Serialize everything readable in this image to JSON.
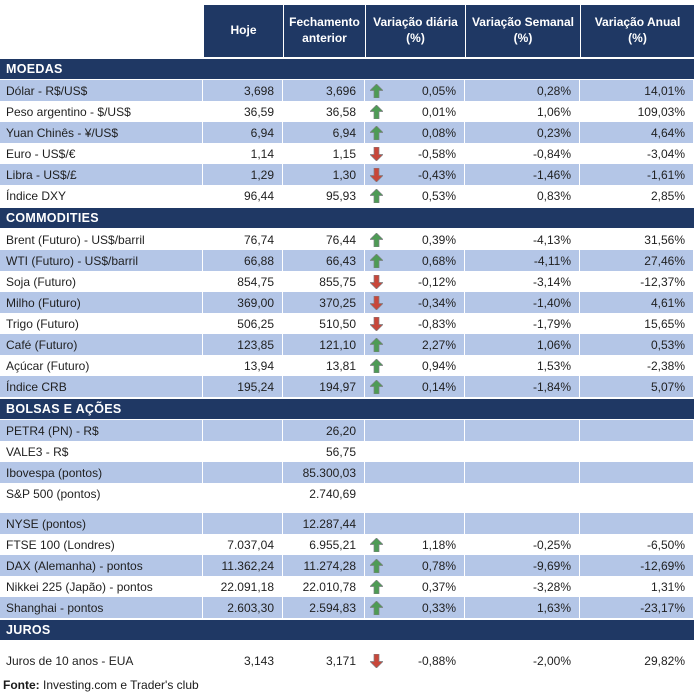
{
  "colors": {
    "header_bg": "#1F3864",
    "band_row": "#B4C6E7",
    "up_arrow": "#4E9B55",
    "down_arrow": "#C8473A"
  },
  "chart_data": {
    "type": "table",
    "columns": [
      "Hoje",
      "Fechamento anterior",
      "Variação diária (%)",
      "Variação Semanal (%)",
      "Variação Anual (%)"
    ],
    "sections": [
      {
        "title": "MOEDAS",
        "band_offset": 0,
        "rows": [
          {
            "label": "Dólar - R$/US$",
            "hoje": "3,698",
            "fechamento": "3,696",
            "arrow": "up",
            "diaria": "0,05%",
            "semanal": "0,28%",
            "anual": "14,01%"
          },
          {
            "label": "Peso argentino - $/US$",
            "hoje": "36,59",
            "fechamento": "36,58",
            "arrow": "up",
            "diaria": "0,01%",
            "semanal": "1,06%",
            "anual": "109,03%"
          },
          {
            "label": "Yuan Chinês - ¥/US$",
            "hoje": "6,94",
            "fechamento": "6,94",
            "arrow": "up",
            "diaria": "0,08%",
            "semanal": "0,23%",
            "anual": "4,64%"
          },
          {
            "label": "Euro - US$/€",
            "hoje": "1,14",
            "fechamento": "1,15",
            "arrow": "down",
            "diaria": "-0,58%",
            "semanal": "-0,84%",
            "anual": "-3,04%"
          },
          {
            "label": "Libra - US$/£",
            "hoje": "1,29",
            "fechamento": "1,30",
            "arrow": "down",
            "diaria": "-0,43%",
            "semanal": "-1,46%",
            "anual": "-1,61%"
          },
          {
            "label": "Índice DXY",
            "hoje": "96,44",
            "fechamento": "95,93",
            "arrow": "up",
            "diaria": "0,53%",
            "semanal": "0,83%",
            "anual": "2,85%"
          }
        ]
      },
      {
        "title": "COMMODITIES",
        "band_offset": 1,
        "rows": [
          {
            "label": "Brent (Futuro) - US$/barril",
            "hoje": "76,74",
            "fechamento": "76,44",
            "arrow": "up",
            "diaria": "0,39%",
            "semanal": "-4,13%",
            "anual": "31,56%"
          },
          {
            "label": "WTI (Futuro) - US$/barril",
            "hoje": "66,88",
            "fechamento": "66,43",
            "arrow": "up",
            "diaria": "0,68%",
            "semanal": "-4,11%",
            "anual": "27,46%"
          },
          {
            "label": "Soja (Futuro)",
            "hoje": "854,75",
            "fechamento": "855,75",
            "arrow": "down",
            "diaria": "-0,12%",
            "semanal": "-3,14%",
            "anual": "-12,37%"
          },
          {
            "label": "Milho (Futuro)",
            "hoje": "369,00",
            "fechamento": "370,25",
            "arrow": "down",
            "diaria": "-0,34%",
            "semanal": "-1,40%",
            "anual": "4,61%"
          },
          {
            "label": "Trigo (Futuro)",
            "hoje": "506,25",
            "fechamento": "510,50",
            "arrow": "down",
            "diaria": "-0,83%",
            "semanal": "-1,79%",
            "anual": "15,65%"
          },
          {
            "label": "Café (Futuro)",
            "hoje": "123,85",
            "fechamento": "121,10",
            "arrow": "up",
            "diaria": "2,27%",
            "semanal": "1,06%",
            "anual": "0,53%"
          },
          {
            "label": "Açúcar (Futuro)",
            "hoje": "13,94",
            "fechamento": "13,81",
            "arrow": "up",
            "diaria": "0,94%",
            "semanal": "1,53%",
            "anual": "-2,38%"
          },
          {
            "label": "Índice CRB",
            "hoje": "195,24",
            "fechamento": "194,97",
            "arrow": "up",
            "diaria": "0,14%",
            "semanal": "-1,84%",
            "anual": "5,07%"
          }
        ]
      },
      {
        "title": "BOLSAS E AÇÕES",
        "band_offset": 0,
        "rows": [
          {
            "label": "PETR4 (PN) - R$",
            "hoje": "",
            "fechamento": "26,20",
            "arrow": "",
            "diaria": "",
            "semanal": "",
            "anual": ""
          },
          {
            "label": "VALE3 - R$",
            "hoje": "",
            "fechamento": "56,75",
            "arrow": "",
            "diaria": "",
            "semanal": "",
            "anual": ""
          },
          {
            "label": "Ibovespa (pontos)",
            "hoje": "",
            "fechamento": "85.300,03",
            "arrow": "",
            "diaria": "",
            "semanal": "",
            "anual": ""
          },
          {
            "label": "S&P 500 (pontos)",
            "hoje": "",
            "fechamento": "2.740,69",
            "arrow": "",
            "diaria": "",
            "semanal": "",
            "anual": ""
          },
          {
            "spacer": true
          },
          {
            "label": "NYSE (pontos)",
            "hoje": "",
            "fechamento": "12.287,44",
            "arrow": "",
            "diaria": "",
            "semanal": "",
            "anual": ""
          },
          {
            "label": "FTSE 100 (Londres)",
            "hoje": "7.037,04",
            "fechamento": "6.955,21",
            "arrow": "up",
            "diaria": "1,18%",
            "semanal": "-0,25%",
            "anual": "-6,50%"
          },
          {
            "label": "DAX (Alemanha) - pontos",
            "hoje": "11.362,24",
            "fechamento": "11.274,28",
            "arrow": "up",
            "diaria": "0,78%",
            "semanal": "-9,69%",
            "anual": "-12,69%"
          },
          {
            "label": "Nikkei 225 (Japão) - pontos",
            "hoje": "22.091,18",
            "fechamento": "22.010,78",
            "arrow": "up",
            "diaria": "0,37%",
            "semanal": "-3,28%",
            "anual": "1,31%"
          },
          {
            "label": "Shanghai - pontos",
            "hoje": "2.603,30",
            "fechamento": "2.594,83",
            "arrow": "up",
            "diaria": "0,33%",
            "semanal": "1,63%",
            "anual": "-23,17%"
          }
        ]
      },
      {
        "title": "JUROS",
        "band_offset": 1,
        "rows": [
          {
            "spacer": true
          },
          {
            "label": "Juros de 10 anos - EUA",
            "hoje": "3,143",
            "fechamento": "3,171",
            "arrow": "down",
            "diaria": "-0,88%",
            "semanal": "-2,00%",
            "anual": "29,82%"
          }
        ]
      }
    ]
  },
  "footer": {
    "label": "Fonte:",
    "text": " Investing.com e Trader's club"
  }
}
